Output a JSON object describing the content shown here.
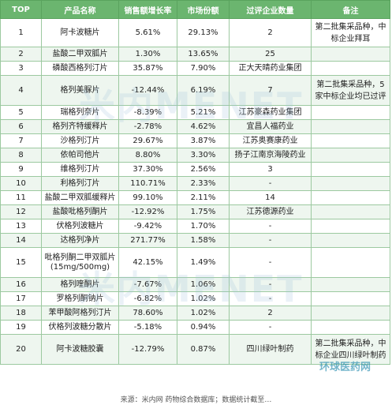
{
  "headers": [
    "TOP",
    "产品名称",
    "销售额增长率",
    "市场份额",
    "过评企业数量",
    "备注"
  ],
  "rows": [
    {
      "rank": "1",
      "name": "阿卡波糖片",
      "growth": "5.61%",
      "share": "29.13%",
      "firms": "2",
      "note": "第二批集采品种，中标企业拜耳"
    },
    {
      "rank": "2",
      "name": "盐酸二甲双胍片",
      "growth": "1.30%",
      "share": "13.65%",
      "firms": "25",
      "note": ""
    },
    {
      "rank": "3",
      "name": "磷酸西格列汀片",
      "growth": "35.87%",
      "share": "7.90%",
      "firms": "正大天晴药业集团",
      "note": ""
    },
    {
      "rank": "4",
      "name": "格列美脲片",
      "growth": "-12.44%",
      "share": "6.19%",
      "firms": "7",
      "note": "第二批集采品种，5家中标企业均已过评"
    },
    {
      "rank": "5",
      "name": "瑞格列奈片",
      "growth": "-8.39%",
      "share": "5.21%",
      "firms": "江苏豪森药业集团",
      "note": ""
    },
    {
      "rank": "6",
      "name": "格列齐特缓释片",
      "growth": "-2.78%",
      "share": "4.62%",
      "firms": "宜昌人福药业",
      "note": ""
    },
    {
      "rank": "7",
      "name": "沙格列汀片",
      "growth": "29.67%",
      "share": "3.87%",
      "firms": "江苏奥赛康药业",
      "note": ""
    },
    {
      "rank": "8",
      "name": "依帕司他片",
      "growth": "8.80%",
      "share": "3.30%",
      "firms": "扬子江南京海陵药业",
      "note": ""
    },
    {
      "rank": "9",
      "name": "维格列汀片",
      "growth": "37.30%",
      "share": "2.56%",
      "firms": "3",
      "note": ""
    },
    {
      "rank": "10",
      "name": "利格列汀片",
      "growth": "110.71%",
      "share": "2.33%",
      "firms": "-",
      "note": ""
    },
    {
      "rank": "11",
      "name": "盐酸二甲双胍缓释片",
      "growth": "99.10%",
      "share": "2.11%",
      "firms": "14",
      "note": ""
    },
    {
      "rank": "12",
      "name": "盐酸吡格列酮片",
      "growth": "-12.92%",
      "share": "1.75%",
      "firms": "江苏德源药业",
      "note": ""
    },
    {
      "rank": "13",
      "name": "伏格列波糖片",
      "growth": "-9.42%",
      "share": "1.70%",
      "firms": "-",
      "note": ""
    },
    {
      "rank": "14",
      "name": "达格列净片",
      "growth": "271.77%",
      "share": "1.58%",
      "firms": "-",
      "note": ""
    },
    {
      "rank": "15",
      "name": "吡格列酮二甲双胍片 (15mg/500mg)",
      "growth": "42.15%",
      "share": "1.49%",
      "firms": "-",
      "note": ""
    },
    {
      "rank": "16",
      "name": "格列喹酮片",
      "growth": "-7.67%",
      "share": "1.06%",
      "firms": "-",
      "note": ""
    },
    {
      "rank": "17",
      "name": "罗格列酮钠片",
      "growth": "-6.82%",
      "share": "1.02%",
      "firms": "-",
      "note": ""
    },
    {
      "rank": "18",
      "name": "苯甲酸阿格列汀片",
      "growth": "78.60%",
      "share": "1.02%",
      "firms": "2",
      "note": ""
    },
    {
      "rank": "19",
      "name": "伏格列波糖分散片",
      "growth": "-5.18%",
      "share": "0.94%",
      "firms": "-",
      "note": ""
    },
    {
      "rank": "20",
      "name": "阿卡波糖胶囊",
      "growth": "-12.79%",
      "share": "0.87%",
      "firms": "四川绿叶制药",
      "note": "第二批集采品种，中标企业四川绿叶制药"
    }
  ],
  "watermark": "米内MENET",
  "logo": "环球医药网",
  "footer": "来源：米内网 药物综合数据库；数据统计截至…"
}
